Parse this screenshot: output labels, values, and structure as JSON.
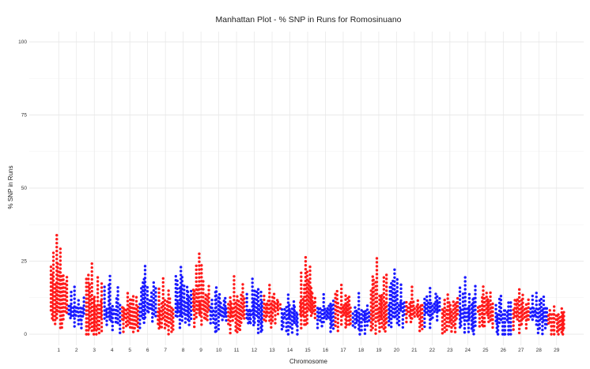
{
  "chart_data": {
    "type": "scatter",
    "title": "Manhattan Plot - % SNP in Runs for  Romosinuano",
    "xlabel": "Chromosome",
    "ylabel": "% SNP in Runs",
    "ylim": [
      0,
      100
    ],
    "yticks": [
      0,
      25,
      50,
      75,
      100
    ],
    "grid": true,
    "legend": "none",
    "colors": {
      "odd": "#ff1a1a",
      "even": "#1a1aff"
    },
    "chromosomes": [
      {
        "label": "1",
        "max": 35,
        "mean": 9
      },
      {
        "label": "2",
        "max": 17,
        "mean": 8
      },
      {
        "label": "3",
        "max": 25,
        "mean": 6
      },
      {
        "label": "4",
        "max": 21,
        "mean": 7
      },
      {
        "label": "5",
        "max": 15,
        "mean": 7
      },
      {
        "label": "6",
        "max": 24,
        "mean": 9
      },
      {
        "label": "7",
        "max": 20,
        "mean": 6
      },
      {
        "label": "8",
        "max": 24,
        "mean": 9
      },
      {
        "label": "9",
        "max": 28,
        "mean": 9
      },
      {
        "label": "10",
        "max": 17,
        "mean": 7
      },
      {
        "label": "11",
        "max": 21,
        "mean": 7
      },
      {
        "label": "12",
        "max": 20,
        "mean": 7
      },
      {
        "label": "13",
        "max": 18,
        "mean": 9
      },
      {
        "label": "14",
        "max": 14,
        "mean": 6
      },
      {
        "label": "15",
        "max": 27,
        "mean": 9
      },
      {
        "label": "16",
        "max": 14,
        "mean": 7
      },
      {
        "label": "17",
        "max": 17,
        "mean": 8
      },
      {
        "label": "18",
        "max": 15,
        "mean": 6
      },
      {
        "label": "19",
        "max": 26,
        "mean": 7
      },
      {
        "label": "20",
        "max": 23,
        "mean": 9
      },
      {
        "label": "21",
        "max": 17,
        "mean": 8
      },
      {
        "label": "22",
        "max": 17,
        "mean": 9
      },
      {
        "label": "23",
        "max": 14,
        "mean": 7
      },
      {
        "label": "24",
        "max": 20,
        "mean": 7
      },
      {
        "label": "25",
        "max": 17,
        "mean": 8
      },
      {
        "label": "26",
        "max": 14,
        "mean": 5
      },
      {
        "label": "27",
        "max": 16,
        "mean": 7
      },
      {
        "label": "28",
        "max": 15,
        "mean": 7
      },
      {
        "label": "29",
        "max": 10,
        "mean": 5
      }
    ]
  }
}
